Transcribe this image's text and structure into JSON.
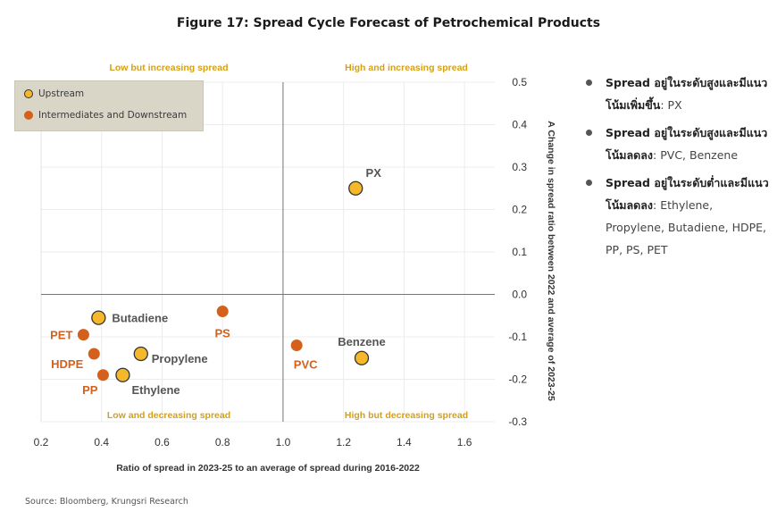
{
  "title": "Figure 17: Spread Cycle Forecast of Petrochemical Products",
  "source": "Source: Bloomberg, Krungsri Research",
  "colors": {
    "upstream": "#f5b82a",
    "downstream": "#d4601c",
    "quadrant_label": "#d4a017",
    "point_label_upstream": "#555555"
  },
  "legend": [
    {
      "label": "Upstream",
      "color": "#f5b82a"
    },
    {
      "label": "Intermediates and Downstream",
      "color": "#d4601c"
    }
  ],
  "quadrant_labels": {
    "top_left": "Low but increasing spread",
    "top_right": "High and increasing spread",
    "bottom_left": "Low and decreasing spread",
    "bottom_right": "High but decreasing spread"
  },
  "notes": [
    {
      "head": "Spread อยู่ในระดับสูงและมีแนวโน้มเพิ่มขึ้น",
      "rest": ": PX"
    },
    {
      "head": "Spread อยู่ในระดับสูงและมีแนวโน้มลดลง",
      "rest": ": PVC, Benzene"
    },
    {
      "head": "Spread อยู่ในระดับต่ำและมีแนวโน้มลดลง",
      "rest": ": Ethylene, Propylene, Butadiene, HDPE, PP, PS, PET"
    }
  ],
  "chart_data": {
    "type": "scatter",
    "xlabel": "Ratio of spread in 2023-25 to an average of spread during 2016-2022",
    "ylabel": "A Change in spread ratio between 2022 and average of 2023-25",
    "xlim": [
      0.2,
      1.7
    ],
    "ylim": [
      -0.3,
      0.5
    ],
    "x_ticks": [
      "0.2",
      "0.4",
      "0.6",
      "0.8",
      "1.0",
      "1.2",
      "1.4",
      "1.6"
    ],
    "y_ticks": [
      "0.5",
      "0.4",
      "0.3",
      "0.2",
      "0.1",
      "0.0",
      "-0.1",
      "-0.2",
      "-0.3"
    ],
    "x_divider": 1.0,
    "y_divider": 0.0,
    "grid": true,
    "series": [
      {
        "name": "Upstream",
        "points": [
          {
            "label": "PX",
            "x": 1.24,
            "y": 0.25
          },
          {
            "label": "Benzene",
            "x": 1.26,
            "y": -0.15
          },
          {
            "label": "Butadiene",
            "x": 0.39,
            "y": -0.055
          },
          {
            "label": "Propylene",
            "x": 0.53,
            "y": -0.14
          },
          {
            "label": "Ethylene",
            "x": 0.47,
            "y": -0.19
          }
        ]
      },
      {
        "name": "Intermediates and Downstream",
        "points": [
          {
            "label": "PS",
            "x": 0.8,
            "y": -0.04
          },
          {
            "label": "PVC",
            "x": 1.045,
            "y": -0.12
          },
          {
            "label": "PET",
            "x": 0.34,
            "y": -0.095
          },
          {
            "label": "HDPE",
            "x": 0.375,
            "y": -0.14
          },
          {
            "label": "PP",
            "x": 0.405,
            "y": -0.19
          }
        ]
      }
    ]
  }
}
